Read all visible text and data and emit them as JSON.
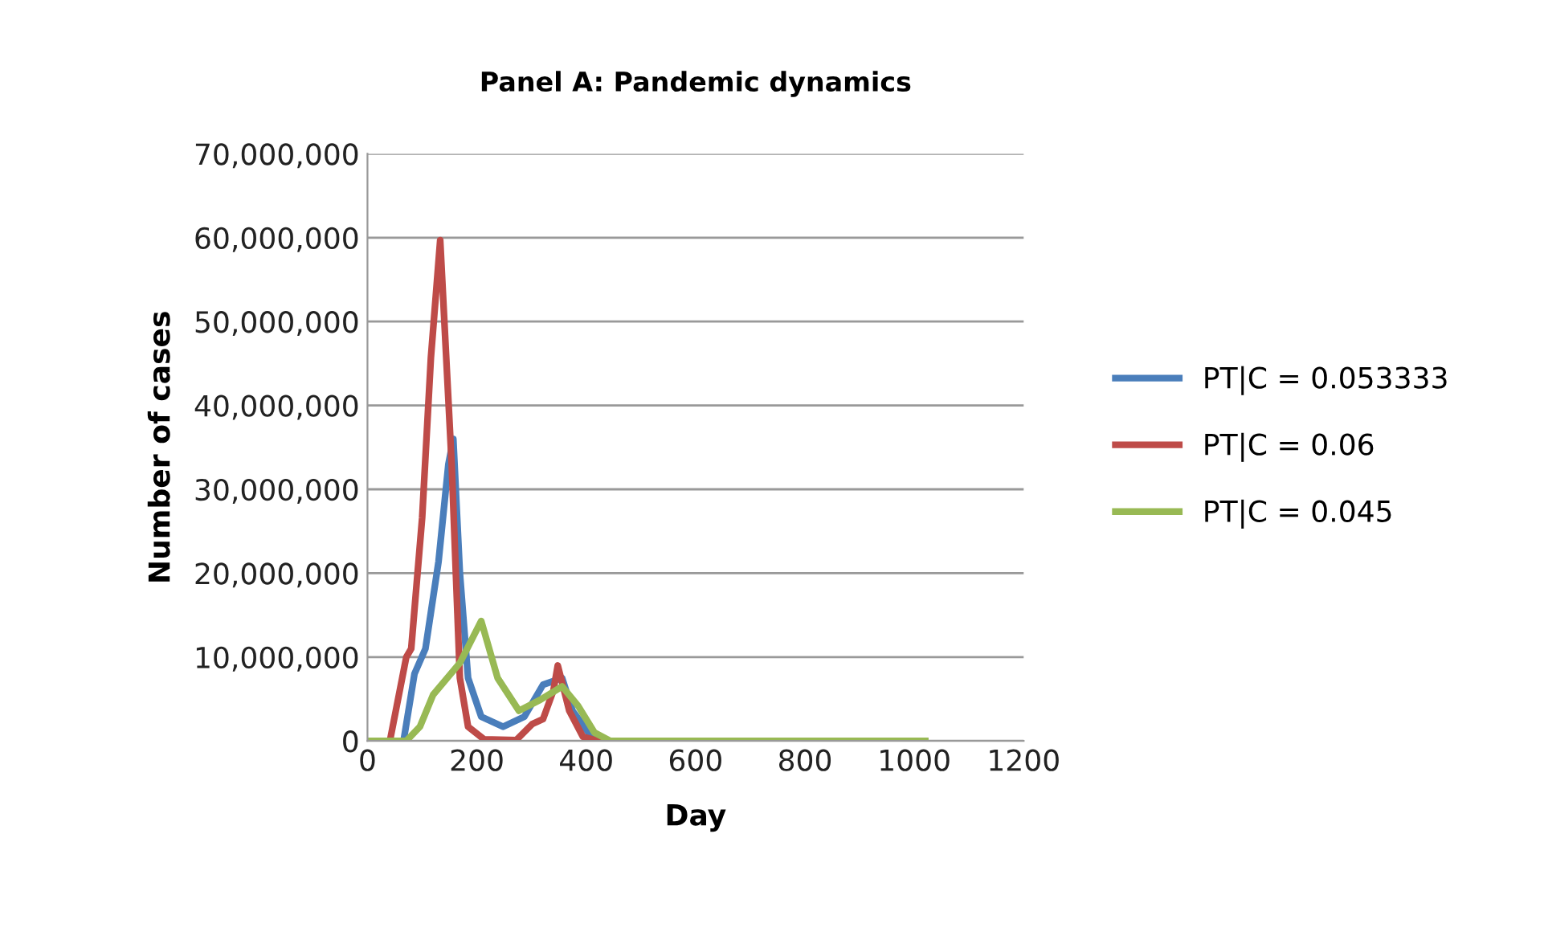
{
  "chart_data": {
    "type": "line",
    "title": "Panel A: Pandemic dynamics",
    "xlabel": "Day",
    "ylabel": "Number of cases",
    "xlim": [
      0,
      1200
    ],
    "xticks": [
      0,
      200,
      400,
      600,
      800,
      1000,
      1200
    ],
    "ylim": [
      0,
      70000000
    ],
    "yticks": [
      {
        "value": 0,
        "label": "0"
      },
      {
        "value": 10000000,
        "label": "10,000,000"
      },
      {
        "value": 20000000,
        "label": "20,000,000"
      },
      {
        "value": 30000000,
        "label": "30,000,000"
      },
      {
        "value": 40000000,
        "label": "40,000,000"
      },
      {
        "value": 50000000,
        "label": "50,000,000"
      },
      {
        "value": 60000000,
        "label": "60,000,000"
      },
      {
        "value": 70000000,
        "label": "70,000,000"
      }
    ],
    "grid": "y",
    "legend": "right",
    "marker": "none",
    "line_style": "solid",
    "series": [
      {
        "name": "PT|C = 0.053333",
        "color": "#4a7ebb",
        "x": [
          0,
          66,
          86,
          106,
          130,
          148,
          157,
          169,
          184,
          208,
          248,
          287,
          321,
          356,
          375,
          404,
          433,
          600
        ],
        "values": [
          0,
          0,
          8000000,
          11000000,
          21400000,
          33000000,
          36000000,
          20000000,
          7500000,
          2900000,
          1700000,
          2900000,
          6700000,
          7500000,
          3600000,
          1000000,
          0,
          0
        ]
      },
      {
        "name": "PT|C = 0.06",
        "color": "#be4b48",
        "x": [
          0,
          41,
          71,
          80,
          100,
          116,
          133,
          154,
          169,
          184,
          213,
          272,
          301,
          321,
          340,
          348,
          369,
          394,
          423,
          600
        ],
        "values": [
          0,
          0,
          10000000,
          11000000,
          26600000,
          45700000,
          59700000,
          33000000,
          7500000,
          1700000,
          200000,
          100000,
          2000000,
          2600000,
          6000000,
          9000000,
          3600000,
          500000,
          0,
          0
        ]
      },
      {
        "name": "PT|C = 0.045",
        "color": "#98b954",
        "x": [
          0,
          71,
          96,
          120,
          169,
          208,
          238,
          277,
          316,
          356,
          385,
          415,
          444,
          600,
          800,
          1020
        ],
        "values": [
          0,
          0,
          1700000,
          5500000,
          9300000,
          14300000,
          7500000,
          3600000,
          4900000,
          6500000,
          4200000,
          1000000,
          0,
          0,
          0,
          0
        ]
      }
    ]
  }
}
